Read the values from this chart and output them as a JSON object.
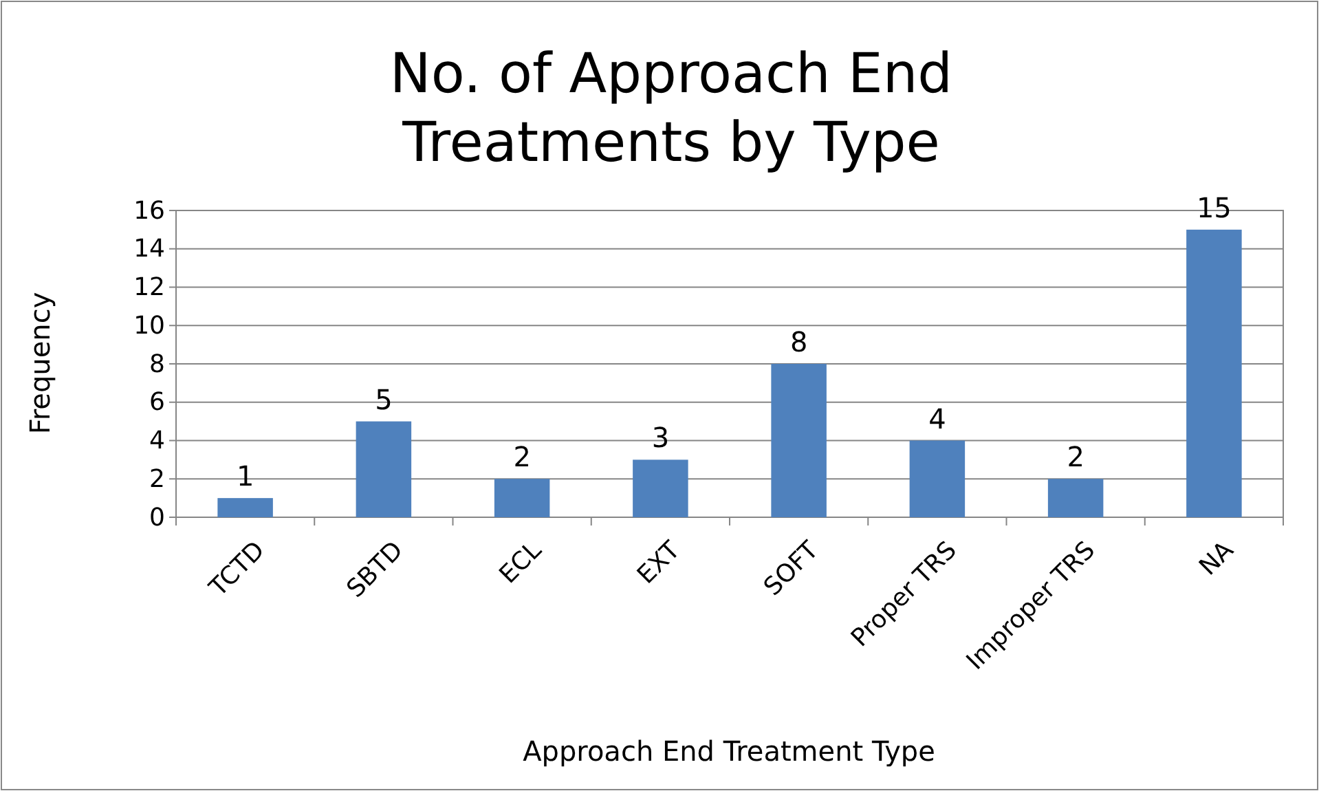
{
  "chart_data": {
    "type": "bar",
    "title": "No. of Approach End Treatments by Type",
    "xlabel": "Approach End Treatment Type",
    "ylabel": "Frequency",
    "categories": [
      "TCTD",
      "SBTD",
      "ECL",
      "EXT",
      "SOFT",
      "Proper TRS",
      "Improper TRS",
      "NA"
    ],
    "values": [
      1,
      5,
      2,
      3,
      8,
      4,
      2,
      15
    ],
    "color": "#4f81bd",
    "data_labels": true,
    "ylim": [
      0,
      16
    ],
    "yticks": [
      0,
      2,
      4,
      6,
      8,
      10,
      12,
      14,
      16
    ],
    "grid": "y"
  }
}
